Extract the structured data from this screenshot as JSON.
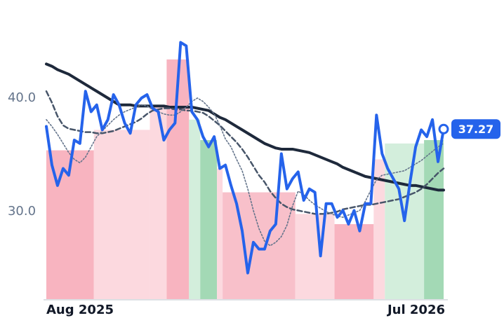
{
  "chart_data": {
    "type": "line",
    "categories": [
      "Aug 2025",
      null,
      null,
      null,
      null,
      null,
      null,
      null,
      null,
      null,
      null,
      null,
      null,
      null,
      null,
      null,
      null,
      null,
      null,
      null,
      null,
      null,
      null,
      null,
      null,
      null,
      null,
      null,
      null,
      null,
      null,
      null,
      null,
      null,
      null,
      null,
      null,
      null,
      null,
      null,
      null,
      null,
      null,
      null,
      null,
      null,
      null,
      null,
      null,
      null,
      null,
      null,
      null,
      null,
      null,
      null,
      null,
      null,
      null,
      null,
      null,
      null,
      null,
      null,
      null,
      null,
      null,
      null,
      null,
      null,
      null,
      "Jul 2026"
    ],
    "ylim": [
      22.3,
      47.4
    ],
    "yticks": [
      {
        "value": 30,
        "label": "30.0"
      },
      {
        "value": 40,
        "label": "40.0"
      }
    ],
    "grid": false,
    "regions": [
      {
        "start": 0,
        "end": 8,
        "value": 35.4,
        "color": "#f8b4c0"
      },
      {
        "start": 9,
        "end": 18,
        "value": 37.2,
        "color": "#fcd9df"
      },
      {
        "start": 19,
        "end": 21,
        "value": 39.4,
        "color": "#fcd9df"
      },
      {
        "start": 22,
        "end": 25,
        "value": 43.4,
        "color": "#f8b4c0"
      },
      {
        "start": 26,
        "end": 27,
        "value": 38.1,
        "color": "#d3eedc"
      },
      {
        "start": 28,
        "end": 30,
        "value": 36.3,
        "color": "#a3d9b5"
      },
      {
        "start": 31,
        "end": 31,
        "value": 33.8,
        "color": "#fcd9df"
      },
      {
        "start": 32,
        "end": 44,
        "value": 31.7,
        "color": "#f8c0ca"
      },
      {
        "start": 45,
        "end": 51,
        "value": 29.8,
        "color": "#fcd9df"
      },
      {
        "start": 52,
        "end": 58,
        "value": 28.9,
        "color": "#f8b4c0"
      },
      {
        "start": 59,
        "end": 60,
        "value": 34.6,
        "color": "#fcd9df"
      },
      {
        "start": 61,
        "end": 67,
        "value": 36.0,
        "color": "#d3eedc"
      },
      {
        "start": 68,
        "end": 71,
        "value": 36.3,
        "color": "#a3d9b5"
      }
    ],
    "series": [
      {
        "color": "#1e293b",
        "line_style": "solid",
        "values": [
          43.0,
          42.8,
          42.5,
          42.3,
          42.1,
          41.8,
          41.5,
          41.2,
          40.9,
          40.6,
          40.3,
          40.0,
          39.7,
          39.4,
          39.4,
          39.4,
          39.3,
          39.3,
          39.3,
          39.3,
          39.3,
          39.3,
          39.2,
          39.2,
          39.2,
          39.2,
          39.2,
          39.1,
          39.0,
          38.9,
          38.6,
          38.3,
          38.1,
          37.8,
          37.5,
          37.2,
          36.9,
          36.6,
          36.3,
          36.0,
          35.8,
          35.6,
          35.5,
          35.5,
          35.5,
          35.4,
          35.3,
          35.2,
          35.0,
          34.8,
          34.6,
          34.4,
          34.2,
          33.9,
          33.7,
          33.5,
          33.3,
          33.1,
          33.0,
          32.9,
          32.8,
          32.7,
          32.6,
          32.5,
          32.4,
          32.3,
          32.3,
          32.2,
          32.1,
          32.0,
          31.9,
          31.9
        ]
      },
      {
        "color": "#475569",
        "line_style": "dashed",
        "values": [
          40.6,
          39.6,
          38.4,
          37.6,
          37.3,
          37.2,
          37.1,
          37.0,
          37.0,
          36.9,
          36.9,
          37.0,
          37.1,
          37.3,
          37.5,
          37.7,
          37.9,
          38.2,
          38.6,
          38.9,
          39.0,
          39.1,
          39.1,
          39.0,
          39.0,
          38.9,
          38.9,
          38.8,
          38.7,
          38.4,
          38.0,
          37.6,
          37.1,
          36.6,
          36.1,
          35.5,
          34.8,
          34.0,
          33.2,
          32.6,
          31.8,
          31.2,
          30.7,
          30.4,
          30.2,
          30.1,
          30.0,
          29.9,
          29.8,
          29.8,
          29.8,
          29.9,
          30.0,
          30.2,
          30.3,
          30.4,
          30.5,
          30.6,
          30.6,
          30.7,
          30.8,
          30.9,
          31.0,
          31.1,
          31.3,
          31.5,
          31.7,
          32.0,
          32.4,
          32.9,
          33.4,
          33.8
        ]
      },
      {
        "color": "#64748b",
        "line_style": "dotted",
        "values": [
          38.1,
          37.5,
          36.8,
          36.0,
          35.2,
          34.6,
          34.3,
          34.8,
          35.7,
          36.6,
          37.1,
          37.6,
          38.1,
          38.5,
          38.8,
          39.0,
          39.2,
          39.4,
          39.3,
          39.0,
          38.8,
          38.6,
          38.5,
          38.5,
          38.8,
          39.2,
          39.7,
          40.0,
          39.7,
          39.2,
          38.6,
          37.6,
          36.4,
          35.7,
          34.6,
          33.6,
          32.0,
          30.1,
          28.5,
          27.4,
          27.0,
          27.3,
          27.8,
          28.8,
          30.5,
          31.8,
          31.5,
          31.0,
          30.6,
          30.3,
          30.0,
          29.8,
          29.6,
          29.5,
          29.7,
          29.9,
          30.1,
          30.9,
          31.9,
          32.8,
          33.2,
          33.3,
          33.4,
          33.5,
          33.6,
          33.9,
          34.2,
          34.5,
          34.9,
          35.3,
          35.7,
          36.0
        ]
      },
      {
        "color": "#2563eb",
        "line_style": "solid",
        "values": [
          37.5,
          34.1,
          32.3,
          33.8,
          33.2,
          36.3,
          36.0,
          40.6,
          38.8,
          39.4,
          37.2,
          38.1,
          40.3,
          39.4,
          37.8,
          36.9,
          39.4,
          40.0,
          40.3,
          39.1,
          38.8,
          36.3,
          37.2,
          37.8,
          44.9,
          44.6,
          38.8,
          38.1,
          36.6,
          35.7,
          36.6,
          33.8,
          34.1,
          32.3,
          30.7,
          28.3,
          24.6,
          27.3,
          26.7,
          26.7,
          28.3,
          28.9,
          35.1,
          32.0,
          32.9,
          33.5,
          31.0,
          32.0,
          31.7,
          26.1,
          30.7,
          30.7,
          29.5,
          30.1,
          28.9,
          30.1,
          28.3,
          30.7,
          30.7,
          38.5,
          35.1,
          33.8,
          32.9,
          32.0,
          29.2,
          32.6,
          35.7,
          37.2,
          36.6,
          38.1,
          34.4,
          37.27
        ]
      }
    ]
  }
}
